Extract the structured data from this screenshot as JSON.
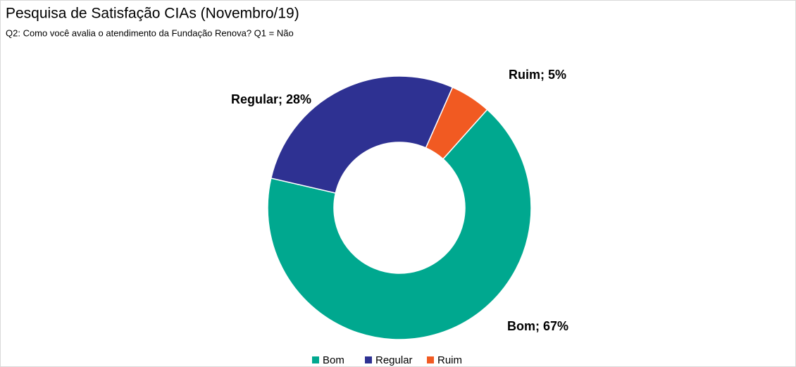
{
  "chart_data": {
    "type": "donut",
    "title": "Pesquisa de Satisfação CIAs (Novembro/19)",
    "subtitle": "Q2: Como você avalia o atendimento da Fundação Renova? Q1 = Não",
    "categories": [
      "Bom",
      "Regular",
      "Ruim"
    ],
    "values": [
      67,
      28,
      5
    ],
    "value_labels": [
      "Bom; 67%",
      "Regular; 28%",
      "Ruim; 5%"
    ],
    "colors": [
      "#00a88f",
      "#2e3192",
      "#f15a22"
    ],
    "legend": "bottom"
  }
}
